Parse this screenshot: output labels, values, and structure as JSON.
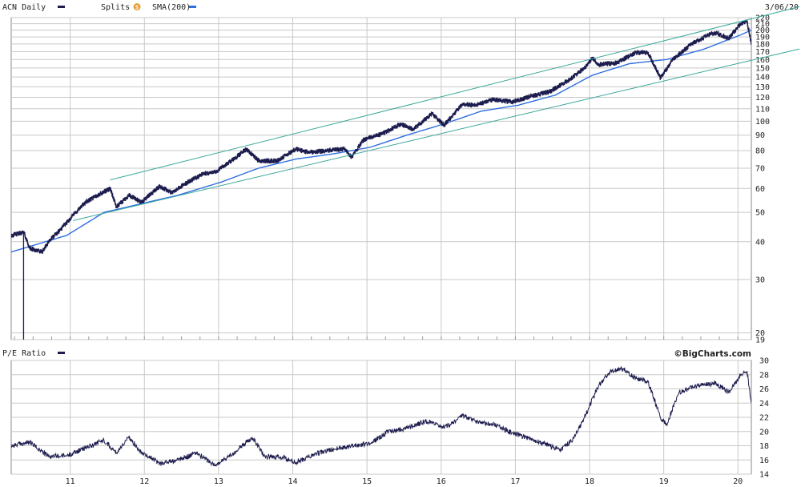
{
  "header": {
    "symbol_label": "ACN Daily",
    "splits_label": "Splits",
    "splits_badge": "S",
    "sma_label": "SMA(200)",
    "date_label": "3/06/20"
  },
  "lower_panel": {
    "label": "P/E Ratio",
    "brand": "©BigCharts.com"
  },
  "colors": {
    "price": "#1c1c4e",
    "sma": "#2f6fe0",
    "channel": "#3aa89a",
    "grid": "#c8c8c8",
    "badge": "#e8a13a"
  },
  "chart_data": [
    {
      "type": "line",
      "title": "ACN Daily",
      "y_scale": "log",
      "ylim": [
        19,
        220
      ],
      "xlim": [
        "2010-03",
        "2020-03-06"
      ],
      "x_tick_labels": [
        "11",
        "12",
        "13",
        "14",
        "15",
        "16",
        "17",
        "18",
        "19",
        "20"
      ],
      "y_tick_labels": [
        "220",
        "210",
        "200",
        "190",
        "180",
        "170",
        "160",
        "150",
        "140",
        "130",
        "120",
        "110",
        "100",
        "90",
        "80",
        "70",
        "60",
        "50",
        "40",
        "30",
        "20",
        "19"
      ],
      "grid": true,
      "series": [
        {
          "name": "ACN Daily",
          "points": [
            [
              "2010-03",
              42
            ],
            [
              "2010-05",
              43
            ],
            [
              "2010-06",
              38
            ],
            [
              "2010-08",
              37
            ],
            [
              "2010-09",
              40
            ],
            [
              "2010-11",
              44
            ],
            [
              "2011-01",
              49
            ],
            [
              "2011-03",
              54
            ],
            [
              "2011-05",
              57
            ],
            [
              "2011-07",
              60
            ],
            [
              "2011-08",
              52
            ],
            [
              "2011-10",
              57
            ],
            [
              "2011-12",
              54
            ],
            [
              "2012-03",
              61
            ],
            [
              "2012-05",
              58
            ],
            [
              "2012-07",
              62
            ],
            [
              "2012-10",
              67
            ],
            [
              "2012-12",
              68
            ],
            [
              "2013-03",
              75
            ],
            [
              "2013-05",
              81
            ],
            [
              "2013-07",
              74
            ],
            [
              "2013-10",
              74
            ],
            [
              "2014-01",
              81
            ],
            [
              "2014-03",
              79
            ],
            [
              "2014-06",
              80
            ],
            [
              "2014-09",
              81
            ],
            [
              "2014-10",
              76
            ],
            [
              "2014-12",
              87
            ],
            [
              "2015-03",
              91
            ],
            [
              "2015-06",
              98
            ],
            [
              "2015-08",
              94
            ],
            [
              "2015-11",
              106
            ],
            [
              "2016-01",
              97
            ],
            [
              "2016-04",
              114
            ],
            [
              "2016-06",
              113
            ],
            [
              "2016-09",
              118
            ],
            [
              "2016-12",
              116
            ],
            [
              "2017-03",
              121
            ],
            [
              "2017-06",
              125
            ],
            [
              "2017-09",
              136
            ],
            [
              "2017-12",
              152
            ],
            [
              "2018-01",
              162
            ],
            [
              "2018-02",
              154
            ],
            [
              "2018-05",
              156
            ],
            [
              "2018-08",
              169
            ],
            [
              "2018-10",
              168
            ],
            [
              "2018-12",
              139
            ],
            [
              "2019-02",
              160
            ],
            [
              "2019-05",
              180
            ],
            [
              "2019-08",
              194
            ],
            [
              "2019-09",
              196
            ],
            [
              "2019-11",
              188
            ],
            [
              "2020-01",
              210
            ],
            [
              "2020-02",
              213
            ],
            [
              "2020-03-06",
              180
            ]
          ]
        },
        {
          "name": "SMA(200)",
          "points": [
            [
              "2010-03",
              37
            ],
            [
              "2010-12",
              42
            ],
            [
              "2011-06",
              50
            ],
            [
              "2012-01",
              54
            ],
            [
              "2012-06",
              57
            ],
            [
              "2013-01",
              63
            ],
            [
              "2013-07",
              70
            ],
            [
              "2014-01",
              75
            ],
            [
              "2014-07",
              78
            ],
            [
              "2015-01",
              82
            ],
            [
              "2015-07",
              90
            ],
            [
              "2016-01",
              98
            ],
            [
              "2016-07",
              108
            ],
            [
              "2017-01",
              113
            ],
            [
              "2017-07",
              122
            ],
            [
              "2018-01",
              142
            ],
            [
              "2018-07",
              155
            ],
            [
              "2019-01",
              160
            ],
            [
              "2019-07",
              173
            ],
            [
              "2020-01",
              193
            ],
            [
              "2020-03-06",
              200
            ]
          ]
        },
        {
          "name": "",
          "points": [
            [
              "2011-07",
              64
            ],
            [
              "2020-03-06",
              218
            ]
          ]
        },
        {
          "name": "",
          "points": [
            [
              "2011-01",
              47
            ],
            [
              "2020-03-06",
              159
            ]
          ]
        }
      ],
      "annotations": [
        {
          "type": "split",
          "date": "2010-05",
          "low": 19,
          "high": 43
        }
      ]
    },
    {
      "type": "line",
      "title": "P/E Ratio",
      "ylim": [
        14,
        30
      ],
      "xlim": [
        "2010-03",
        "2020-03-06"
      ],
      "x_tick_labels": [
        "11",
        "12",
        "13",
        "14",
        "15",
        "16",
        "17",
        "18",
        "19",
        "20"
      ],
      "y_tick_labels": [
        "30",
        "28",
        "26",
        "24",
        "22",
        "20",
        "18",
        "16",
        "14"
      ],
      "grid": true,
      "series": [
        {
          "name": "P/E Ratio",
          "points": [
            [
              "2010-03",
              18.0
            ],
            [
              "2010-06",
              18.5
            ],
            [
              "2010-09",
              16.5
            ],
            [
              "2010-12",
              16.6
            ],
            [
              "2011-03",
              17.7
            ],
            [
              "2011-06",
              18.8
            ],
            [
              "2011-08",
              17.0
            ],
            [
              "2011-10",
              19.2
            ],
            [
              "2011-12",
              17.2
            ],
            [
              "2012-03",
              15.5
            ],
            [
              "2012-06",
              16.0
            ],
            [
              "2012-09",
              17.0
            ],
            [
              "2012-12",
              15.2
            ],
            [
              "2013-03",
              17.0
            ],
            [
              "2013-06",
              19.2
            ],
            [
              "2013-08",
              16.5
            ],
            [
              "2013-11",
              16.3
            ],
            [
              "2014-01",
              15.6
            ],
            [
              "2014-04",
              16.8
            ],
            [
              "2014-07",
              17.5
            ],
            [
              "2014-10",
              18.0
            ],
            [
              "2015-01",
              18.3
            ],
            [
              "2015-04",
              20.0
            ],
            [
              "2015-07",
              20.5
            ],
            [
              "2015-10",
              21.5
            ],
            [
              "2016-01",
              20.5
            ],
            [
              "2016-04",
              22.2
            ],
            [
              "2016-06",
              21.5
            ],
            [
              "2016-09",
              21.0
            ],
            [
              "2016-12",
              19.8
            ],
            [
              "2017-03",
              19.0
            ],
            [
              "2017-06",
              18.0
            ],
            [
              "2017-08",
              17.5
            ],
            [
              "2017-10",
              19.0
            ],
            [
              "2017-12",
              22.5
            ],
            [
              "2018-02",
              26.5
            ],
            [
              "2018-04",
              28.5
            ],
            [
              "2018-06",
              28.8
            ],
            [
              "2018-08",
              27.5
            ],
            [
              "2018-10",
              27.0
            ],
            [
              "2018-12",
              22.0
            ],
            [
              "2019-01",
              21.0
            ],
            [
              "2019-03",
              25.5
            ],
            [
              "2019-06",
              26.5
            ],
            [
              "2019-09",
              26.8
            ],
            [
              "2019-11",
              25.5
            ],
            [
              "2020-01",
              28.0
            ],
            [
              "2020-02",
              28.5
            ],
            [
              "2020-03-06",
              24.0
            ]
          ]
        }
      ]
    }
  ]
}
